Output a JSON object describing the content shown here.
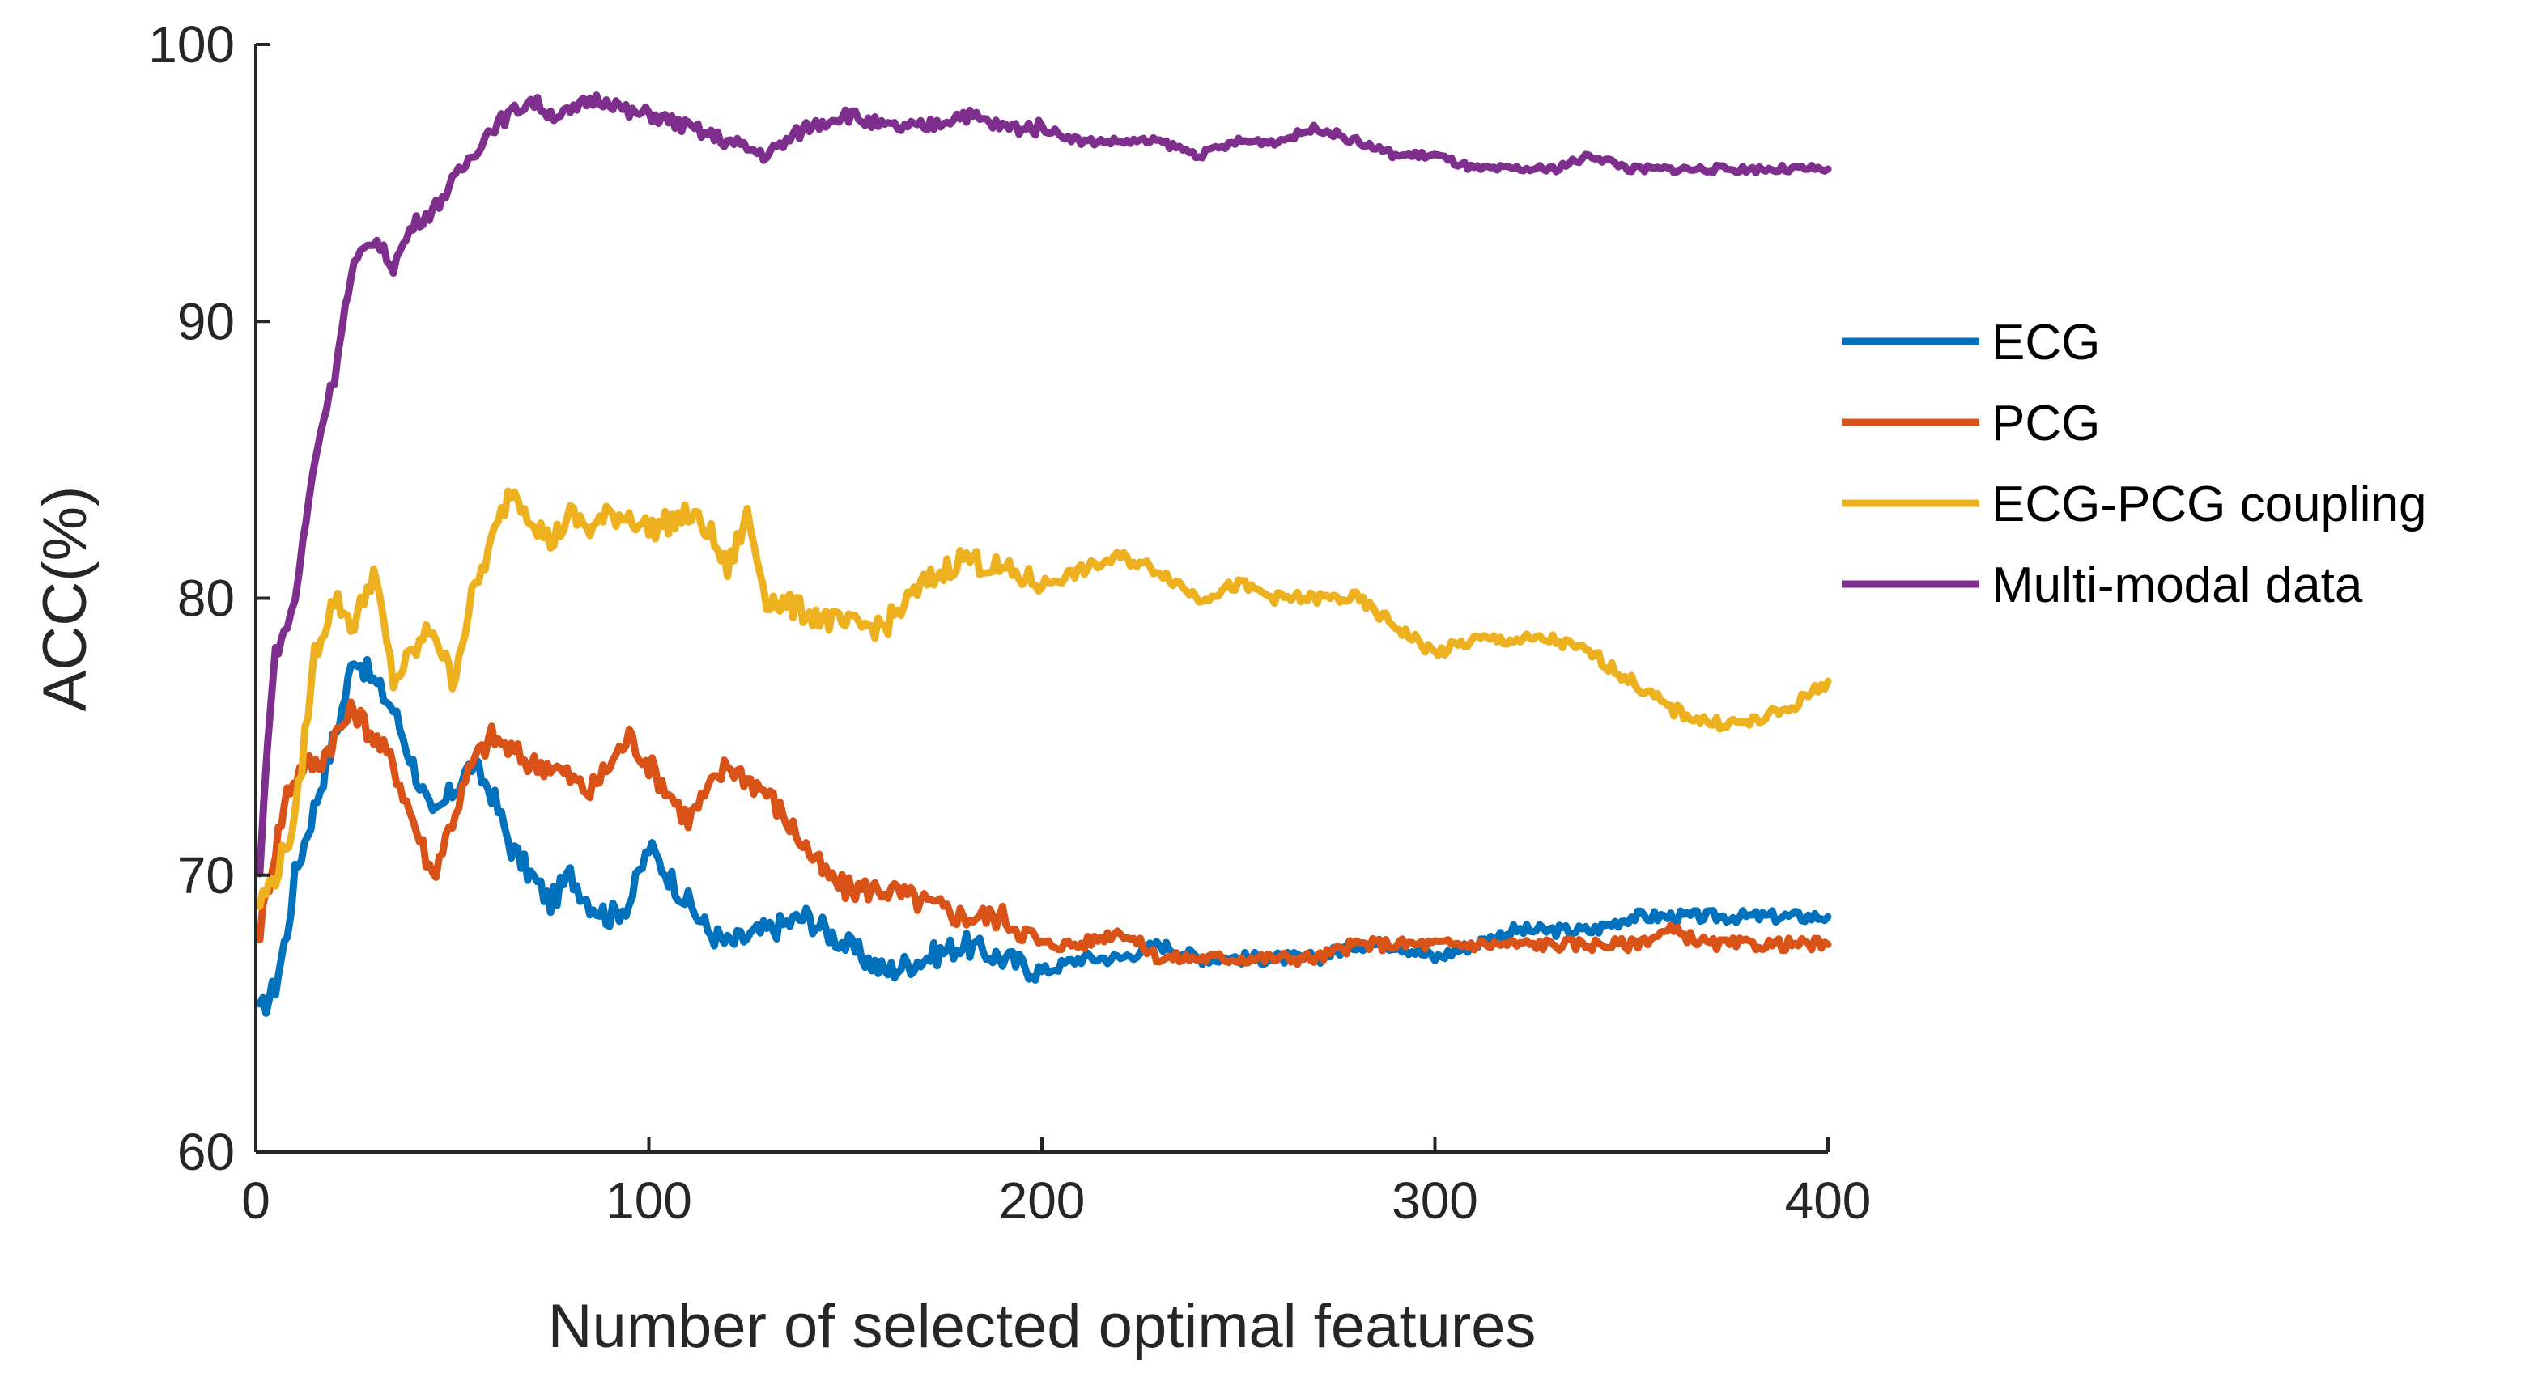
{
  "chart_data": {
    "type": "line",
    "title": "",
    "xlabel": "Number of selected optimal features",
    "ylabel": "ACC(%)",
    "xlim": [
      0,
      400
    ],
    "ylim": [
      60,
      100
    ],
    "xticks": [
      0,
      100,
      200,
      300,
      400
    ],
    "yticks": [
      60,
      70,
      80,
      90,
      100
    ],
    "xtick_labels": [
      "0",
      "100",
      "200",
      "300",
      "400"
    ],
    "ytick_labels": [
      "60",
      "70",
      "80",
      "90",
      "100"
    ],
    "grid": false,
    "legend_position": "right",
    "series": [
      {
        "name": "ECG",
        "color": "#0072BD",
        "points": [
          [
            1,
            65
          ],
          [
            5,
            66
          ],
          [
            8,
            68
          ],
          [
            10,
            70
          ],
          [
            14,
            72
          ],
          [
            18,
            74
          ],
          [
            22,
            76
          ],
          [
            25,
            78
          ],
          [
            30,
            77
          ],
          [
            35,
            76
          ],
          [
            40,
            74
          ],
          [
            45,
            72
          ],
          [
            50,
            73
          ],
          [
            55,
            74
          ],
          [
            60,
            73
          ],
          [
            65,
            71
          ],
          [
            70,
            70
          ],
          [
            75,
            69
          ],
          [
            80,
            70
          ],
          [
            85,
            69
          ],
          [
            90,
            68.5
          ],
          [
            95,
            69
          ],
          [
            100,
            71
          ],
          [
            105,
            70
          ],
          [
            110,
            69
          ],
          [
            115,
            68
          ],
          [
            120,
            67.5
          ],
          [
            130,
            68
          ],
          [
            140,
            68.5
          ],
          [
            150,
            67.5
          ],
          [
            160,
            66.5
          ],
          [
            170,
            67
          ],
          [
            180,
            67.5
          ],
          [
            190,
            67
          ],
          [
            200,
            66.5
          ],
          [
            210,
            67
          ],
          [
            220,
            67
          ],
          [
            230,
            67.5
          ],
          [
            240,
            67
          ],
          [
            250,
            67
          ],
          [
            260,
            67
          ],
          [
            270,
            67
          ],
          [
            280,
            67.5
          ],
          [
            290,
            67.5
          ],
          [
            300,
            67
          ],
          [
            310,
            67.5
          ],
          [
            320,
            68
          ],
          [
            330,
            68
          ],
          [
            340,
            68
          ],
          [
            350,
            68.5
          ],
          [
            360,
            68.5
          ],
          [
            370,
            68.5
          ],
          [
            380,
            68.5
          ],
          [
            390,
            68.5
          ],
          [
            400,
            68.5
          ]
        ]
      },
      {
        "name": "PCG",
        "color": "#D95319",
        "points": [
          [
            1,
            68
          ],
          [
            5,
            71
          ],
          [
            8,
            73
          ],
          [
            12,
            74
          ],
          [
            16,
            74
          ],
          [
            20,
            75
          ],
          [
            25,
            76
          ],
          [
            30,
            75
          ],
          [
            35,
            74
          ],
          [
            40,
            72
          ],
          [
            45,
            70
          ],
          [
            50,
            72
          ],
          [
            55,
            74
          ],
          [
            60,
            75
          ],
          [
            65,
            74.5
          ],
          [
            70,
            74
          ],
          [
            75,
            74
          ],
          [
            80,
            73.5
          ],
          [
            85,
            73
          ],
          [
            90,
            74
          ],
          [
            95,
            75
          ],
          [
            100,
            74
          ],
          [
            105,
            73
          ],
          [
            110,
            72
          ],
          [
            115,
            73
          ],
          [
            120,
            74
          ],
          [
            125,
            73.5
          ],
          [
            130,
            73
          ],
          [
            135,
            72
          ],
          [
            140,
            71
          ],
          [
            145,
            70
          ],
          [
            150,
            69.5
          ],
          [
            160,
            69.5
          ],
          [
            170,
            69
          ],
          [
            180,
            68.5
          ],
          [
            190,
            68.5
          ],
          [
            200,
            67.5
          ],
          [
            210,
            67.5
          ],
          [
            220,
            68
          ],
          [
            230,
            67
          ],
          [
            240,
            67
          ],
          [
            250,
            67
          ],
          [
            260,
            67
          ],
          [
            270,
            67
          ],
          [
            280,
            67.5
          ],
          [
            290,
            67.5
          ],
          [
            300,
            67.5
          ],
          [
            310,
            67.5
          ],
          [
            320,
            67.5
          ],
          [
            330,
            67.5
          ],
          [
            340,
            67.5
          ],
          [
            350,
            67.5
          ],
          [
            360,
            68
          ],
          [
            370,
            67.5
          ],
          [
            380,
            67.5
          ],
          [
            390,
            67.5
          ],
          [
            400,
            67.5
          ]
        ]
      },
      {
        "name": "ECG-PCG coupling",
        "color": "#EDB120",
        "points": [
          [
            1,
            69
          ],
          [
            5,
            70
          ],
          [
            10,
            72
          ],
          [
            15,
            78
          ],
          [
            20,
            80
          ],
          [
            25,
            79
          ],
          [
            30,
            81
          ],
          [
            35,
            77
          ],
          [
            40,
            78
          ],
          [
            45,
            79
          ],
          [
            50,
            77
          ],
          [
            55,
            80
          ],
          [
            60,
            82
          ],
          [
            65,
            84
          ],
          [
            70,
            83
          ],
          [
            75,
            82
          ],
          [
            80,
            83
          ],
          [
            85,
            82.5
          ],
          [
            90,
            83
          ],
          [
            95,
            83
          ],
          [
            100,
            82.5
          ],
          [
            110,
            83
          ],
          [
            115,
            82.5
          ],
          [
            120,
            81
          ],
          [
            125,
            83
          ],
          [
            130,
            80
          ],
          [
            140,
            79.5
          ],
          [
            150,
            79
          ],
          [
            160,
            79
          ],
          [
            170,
            80.5
          ],
          [
            180,
            81.5
          ],
          [
            190,
            81
          ],
          [
            200,
            80.5
          ],
          [
            210,
            81
          ],
          [
            220,
            81.5
          ],
          [
            230,
            81
          ],
          [
            240,
            80
          ],
          [
            250,
            80.5
          ],
          [
            260,
            80
          ],
          [
            270,
            80
          ],
          [
            280,
            80
          ],
          [
            290,
            79
          ],
          [
            300,
            78
          ],
          [
            310,
            78.5
          ],
          [
            320,
            78.5
          ],
          [
            330,
            78.5
          ],
          [
            340,
            78
          ],
          [
            350,
            77
          ],
          [
            360,
            76
          ],
          [
            370,
            75.5
          ],
          [
            380,
            75.5
          ],
          [
            390,
            76
          ],
          [
            400,
            77
          ]
        ]
      },
      {
        "name": "Multi-modal data",
        "color": "#7E2F8E",
        "points": [
          [
            1,
            70
          ],
          [
            3,
            75
          ],
          [
            5,
            78
          ],
          [
            8,
            79
          ],
          [
            10,
            80
          ],
          [
            12,
            82
          ],
          [
            15,
            85
          ],
          [
            18,
            87
          ],
          [
            20,
            88
          ],
          [
            22,
            90
          ],
          [
            25,
            92
          ],
          [
            30,
            93
          ],
          [
            35,
            92
          ],
          [
            40,
            93.5
          ],
          [
            45,
            94
          ],
          [
            50,
            95
          ],
          [
            55,
            96
          ],
          [
            60,
            97
          ],
          [
            65,
            97.5
          ],
          [
            70,
            98
          ],
          [
            75,
            97.5
          ],
          [
            80,
            97.5
          ],
          [
            85,
            98
          ],
          [
            90,
            98
          ],
          [
            95,
            97.5
          ],
          [
            100,
            97.5
          ],
          [
            110,
            97
          ],
          [
            120,
            96.5
          ],
          [
            130,
            96
          ],
          [
            140,
            97
          ],
          [
            150,
            97.5
          ],
          [
            160,
            97
          ],
          [
            170,
            97
          ],
          [
            180,
            97.5
          ],
          [
            190,
            97
          ],
          [
            200,
            97
          ],
          [
            210,
            96.5
          ],
          [
            220,
            96.5
          ],
          [
            230,
            96.5
          ],
          [
            240,
            96
          ],
          [
            250,
            96.5
          ],
          [
            260,
            96.5
          ],
          [
            270,
            97
          ],
          [
            280,
            96.5
          ],
          [
            290,
            96
          ],
          [
            300,
            96
          ],
          [
            310,
            95.5
          ],
          [
            320,
            95.5
          ],
          [
            330,
            95.5
          ],
          [
            340,
            96
          ],
          [
            350,
            95.5
          ],
          [
            360,
            95.5
          ],
          [
            370,
            95.5
          ],
          [
            380,
            95.5
          ],
          [
            390,
            95.5
          ],
          [
            400,
            95.5
          ]
        ]
      }
    ]
  }
}
